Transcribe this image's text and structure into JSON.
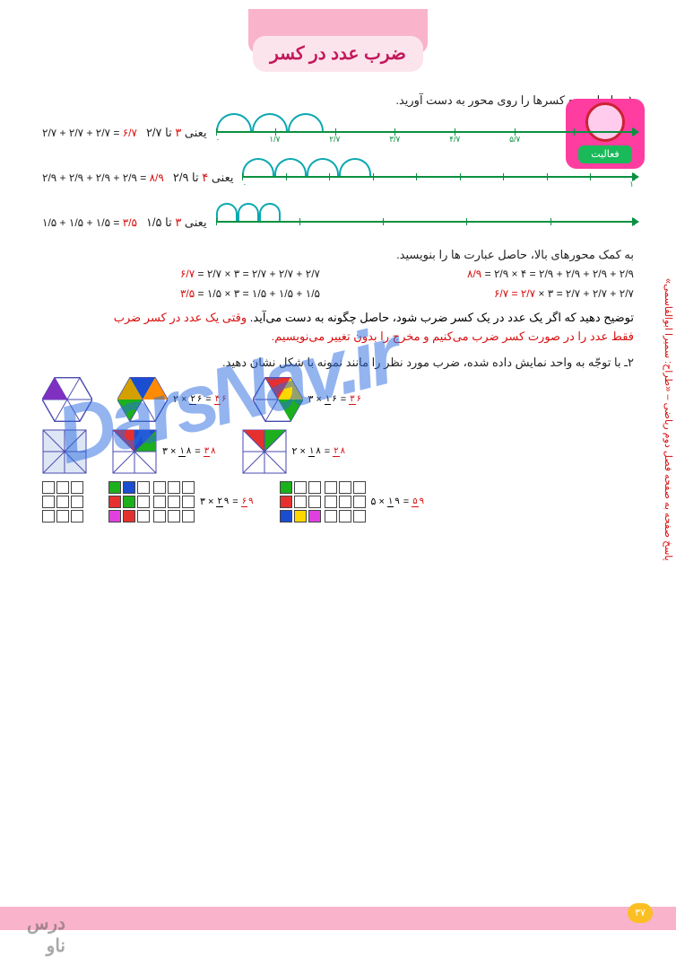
{
  "title": "ضرب عدد در کسر",
  "title_color": "#c2185b",
  "activity_label": "فعالیت",
  "instruction1": "۱ـ حاصل جمع کسرها را روی محور به دست آورید.",
  "rows": [
    {
      "eq_main": "۲/۷ + ۲/۷ + ۲/۷ =",
      "result": "۶/۷",
      "label_word": "یعنی",
      "label_count": "۳",
      "label_rest": "تا ۲/۷",
      "arcs": 3,
      "arc_w": 40,
      "ticks": [
        "۰",
        "۱/۷",
        "۲/۷",
        "۳/۷",
        "۴/۷",
        "۵/۷",
        "۶/۷",
        "۱"
      ]
    },
    {
      "eq_main": "۲/۹ + ۲/۹ + ۲/۹ + ۲/۹ =",
      "result": "۸/۹",
      "label_word": "یعنی",
      "label_count": "۴",
      "label_rest": "تا ۲/۹",
      "arcs": 4,
      "arc_w": 36,
      "ticks": [
        "۰",
        "",
        "",
        "",
        "",
        "",
        "",
        "",
        "",
        "۱"
      ]
    },
    {
      "eq_main": "۱/۵ + ۱/۵ + ۱/۵ =",
      "result": "۳/۵",
      "label_word": "یعنی",
      "label_count": "۳",
      "label_rest": "تا ۱/۵",
      "arcs": 3,
      "arc_w": 24,
      "ticks": [
        "",
        "",
        "",
        "",
        "",
        ""
      ]
    }
  ],
  "instruction2": "به کمک محورهای بالا، حاصل عبارت ها را بنویسید.",
  "expressions": [
    {
      "text": "۲/۹ + ۲/۹ + ۲/۹ + ۲/۹ = ۴ × ۲/۹ =",
      "res": "۸/۹"
    },
    {
      "text": "۲/۷ + ۲/۷ + ۲/۷ = ۳ × ۲/۷ =",
      "res": "۶/۷"
    },
    {
      "text": "۲/۷ + ۲/۷ + ۲/۷ = ۳ ×",
      "mid": "۲/۷",
      "res": "= ۶/۷"
    },
    {
      "text": "۱/۵ + ۱/۵ + ۱/۵ = ۳ × ۱/۵ =",
      "res": "۳/۵"
    }
  ],
  "explanation_black": "توضیح دهید که اگر یک عدد در یک کسر ضرب شود، حاصل چگونه به دست می‌آید.",
  "explanation_red1": "وقتی یک عدد در کسر ضرب",
  "explanation_red2": "فقط عدد را در صورت کسر ضرب می‌کنیم و مخرج را بدون تغییر می‌نویسیم.",
  "instruction3": "۲ـ با توجّه به واحد نمایش داده شده، ضرب مورد نظر را مانند نمونه با شکل نشان دهید.",
  "shape_eqs": {
    "hex1": "۳ × ۱/۶ = ۳/۶",
    "hex2": "۲ × ۲/۶ = ۴/۶",
    "sq1": "۲ × ۱/۸ = ۲/۸",
    "sq2": "۳ × ۱/۸ = ۳/۸",
    "g1": "۵ × ۱/۹ = ۵/۹",
    "g2": "۳ × ۲/۹ = ۶/۹"
  },
  "colors": {
    "red": "#e63030",
    "green": "#1cb01c",
    "blue": "#1a4dd0",
    "yellow": "#ffd700",
    "orange": "#ff8c00",
    "purple": "#8030c0",
    "magenta": "#e040e0",
    "gold": "#d4a000"
  },
  "watermark": "DarsNav.ir",
  "side_text": "پاسخ صفحه به صفحه فصل دوم ریاضی – «طراح: سمیرا ابوالقاسمی»",
  "page_number": "۳۷",
  "logo": "درس\nناو"
}
